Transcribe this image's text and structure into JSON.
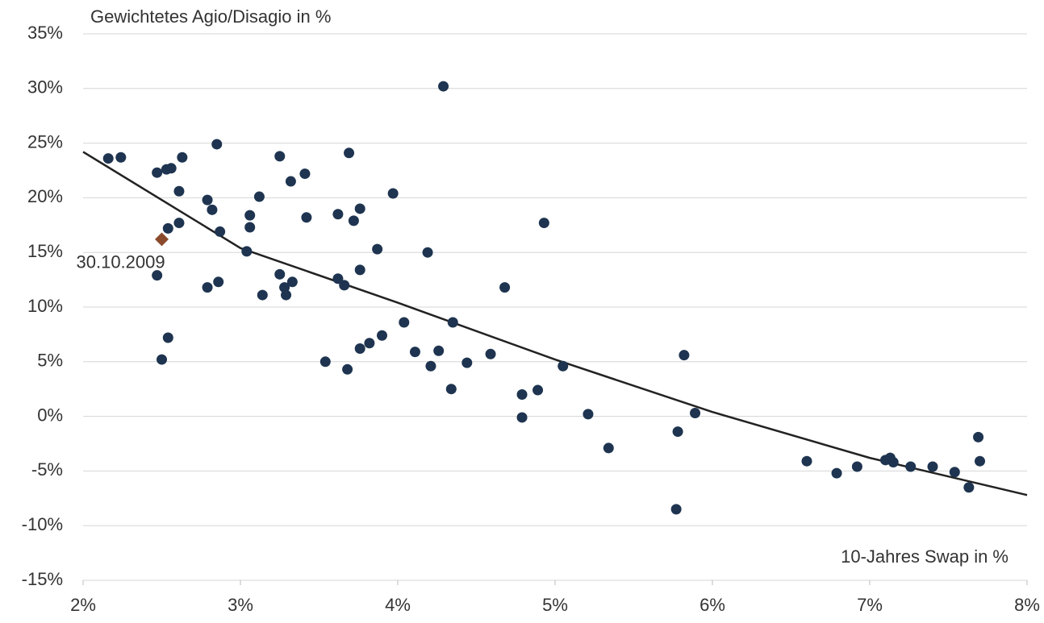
{
  "chart_data": {
    "type": "scatter",
    "y_label": "Gewichtetes Agio/Disagio in %",
    "x_label": "10-Jahres Swap in %",
    "xlim": [
      2,
      8
    ],
    "ylim": [
      -15,
      35
    ],
    "xticks": [
      {
        "value": 2,
        "label": "2%"
      },
      {
        "value": 3,
        "label": "3%"
      },
      {
        "value": 4,
        "label": "4%"
      },
      {
        "value": 5,
        "label": "5%"
      },
      {
        "value": 6,
        "label": "6%"
      },
      {
        "value": 7,
        "label": "7%"
      },
      {
        "value": 8,
        "label": "8%"
      }
    ],
    "yticks": [
      {
        "value": -15,
        "label": "-15%"
      },
      {
        "value": -10,
        "label": "-10%"
      },
      {
        "value": -5,
        "label": "-5%"
      },
      {
        "value": 0,
        "label": "0%"
      },
      {
        "value": 5,
        "label": "5%"
      },
      {
        "value": 10,
        "label": "10%"
      },
      {
        "value": 15,
        "label": "15%"
      },
      {
        "value": 20,
        "label": "20%"
      },
      {
        "value": 25,
        "label": "25%"
      },
      {
        "value": 30,
        "label": "30%"
      },
      {
        "value": 35,
        "label": "35%"
      }
    ],
    "grid": true,
    "series": [
      {
        "color": "#1e3450",
        "x": [
          2.16,
          2.24,
          2.47,
          2.53,
          2.56,
          2.63,
          2.61,
          2.61,
          2.54,
          2.47,
          2.54,
          2.5,
          2.85,
          2.79,
          2.82,
          2.87,
          2.79,
          2.86,
          3.04,
          3.06,
          3.06,
          3.12,
          3.14,
          3.25,
          3.32,
          3.41,
          3.42,
          3.25,
          3.28,
          3.29,
          3.33,
          3.54,
          3.62,
          3.62,
          3.66,
          3.69,
          3.72,
          3.76,
          3.76,
          3.68,
          3.76,
          3.82,
          3.87,
          3.9,
          3.97,
          4.04,
          4.11,
          4.19,
          4.21,
          4.26,
          4.29,
          4.35,
          4.34,
          4.44,
          4.59,
          4.68,
          4.79,
          4.79,
          4.89,
          4.93,
          5.05,
          5.21,
          5.34,
          5.78,
          5.77,
          5.82,
          5.89,
          6.6,
          6.79,
          6.92,
          7.1,
          7.13,
          7.15,
          7.26,
          7.4,
          7.54,
          7.63,
          7.69,
          7.7
        ],
        "values": [
          23.6,
          23.7,
          22.3,
          22.6,
          22.7,
          23.7,
          20.6,
          17.7,
          17.2,
          12.9,
          7.2,
          5.2,
          24.9,
          19.8,
          18.9,
          16.9,
          11.8,
          12.3,
          15.1,
          17.3,
          18.4,
          20.1,
          11.1,
          23.8,
          21.5,
          22.2,
          18.2,
          13.0,
          11.8,
          11.1,
          12.3,
          5.0,
          18.5,
          12.6,
          12.0,
          24.1,
          17.9,
          19.0,
          13.4,
          4.3,
          6.2,
          6.7,
          15.3,
          7.4,
          20.4,
          8.6,
          5.9,
          15.0,
          4.6,
          6.0,
          30.2,
          8.6,
          2.5,
          4.9,
          5.7,
          11.8,
          2.0,
          -0.1,
          2.4,
          17.7,
          4.6,
          0.2,
          -2.9,
          -1.4,
          -8.5,
          5.6,
          0.3,
          -4.1,
          -5.2,
          -4.6,
          -4.0,
          -3.8,
          -4.2,
          -4.6,
          -4.6,
          -5.1,
          -6.5,
          -1.9,
          -4.1
        ]
      }
    ],
    "highlight": {
      "x": 2.5,
      "y": 16.2,
      "label": "30.10.2009",
      "color": "#8b4a2b"
    },
    "trendline": {
      "color": "#222222",
      "x": [
        2,
        3,
        4,
        5,
        6,
        7,
        8
      ],
      "values": [
        24.2,
        15.4,
        10.4,
        5.2,
        0.4,
        -3.8,
        -7.2
      ]
    }
  }
}
